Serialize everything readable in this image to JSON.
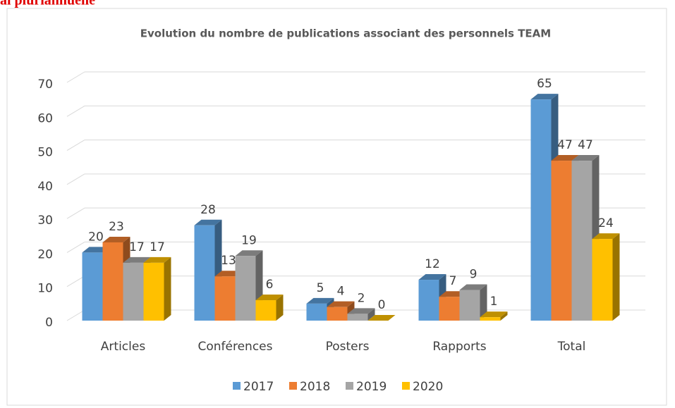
{
  "heading": "al pluriannuelle",
  "chart_data": {
    "type": "bar3d",
    "title": "Evolution du nombre de publications associant des personnels TEAM",
    "categories": [
      "Articles",
      "Conférences",
      "Posters",
      "Rapports",
      "Total"
    ],
    "series": [
      {
        "name": "2017",
        "color": "#5b9bd5",
        "values": [
          20,
          28,
          5,
          12,
          65
        ]
      },
      {
        "name": "2018",
        "color": "#ed7d31",
        "values": [
          23,
          13,
          4,
          7,
          47
        ]
      },
      {
        "name": "2019",
        "color": "#a5a5a5",
        "values": [
          17,
          19,
          2,
          9,
          47
        ]
      },
      {
        "name": "2020",
        "color": "#ffc000",
        "values": [
          17,
          6,
          0,
          1,
          24
        ]
      }
    ],
    "ylim": [
      0,
      70
    ],
    "yticks": [
      0,
      10,
      20,
      30,
      40,
      50,
      60,
      70
    ],
    "grid": true,
    "legend": "bottom"
  }
}
